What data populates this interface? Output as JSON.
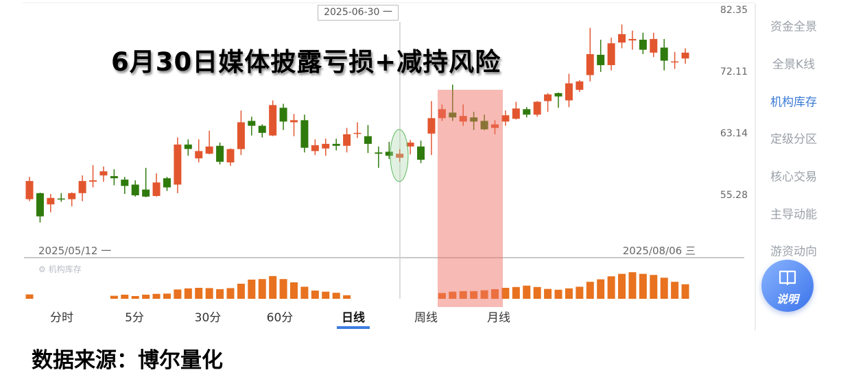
{
  "annotation": {
    "title": "6月30日媒体披露亏损+减持风险",
    "footer": "数据来源：博尔量化"
  },
  "crosshair": {
    "date": "2025-06-30 一"
  },
  "date_range": {
    "start": "2025/05/12 一",
    "end": "2025/08/06 三"
  },
  "indicator": {
    "icon": "gear-icon",
    "label": "机构库存"
  },
  "tabs": [
    {
      "label": "分时"
    },
    {
      "label": "5分"
    },
    {
      "label": "30分"
    },
    {
      "label": "60分"
    },
    {
      "label": "日线",
      "active": true
    },
    {
      "label": "周线"
    },
    {
      "label": "月线"
    }
  ],
  "sidebar": {
    "items": [
      {
        "label": "资金全景"
      },
      {
        "label": "全景K线"
      },
      {
        "label": "机构库存",
        "active": true
      },
      {
        "label": "定级分区"
      },
      {
        "label": "核心交易"
      },
      {
        "label": "主导动能"
      },
      {
        "label": "游资动向"
      }
    ],
    "help_button": {
      "label": "说明",
      "icon": "book-icon"
    }
  },
  "colors": {
    "up": "#e2562f",
    "down": "#2f7a0c",
    "volume": "#e8721f",
    "accent": "#3a7bd5",
    "highlight_zone": "#f4a9a2",
    "highlight_ellipse": "#5cb85c"
  },
  "chart_data": {
    "type": "candlestick",
    "y_scale": "log",
    "y_ticks": [
      82.35,
      72.11,
      63.14,
      55.28
    ],
    "ylim": [
      55.28,
      82.35
    ],
    "grid": false,
    "highlight_candle_index": 35,
    "highlight_zone_indices": [
      39,
      44
    ],
    "ohlc": [
      [
        54.82,
        57.52,
        54.59,
        57.01
      ],
      [
        55.54,
        55.6,
        52.14,
        52.83
      ],
      [
        54.21,
        55.45,
        53.29,
        54.97
      ],
      [
        54.9,
        55.54,
        54.52,
        54.82
      ],
      [
        54.82,
        55.63,
        53.98,
        55.54
      ],
      [
        55.54,
        57.7,
        54.59,
        57.01
      ],
      [
        56.93,
        58.99,
        56.23,
        57.09
      ],
      [
        57.7,
        58.82,
        56.92,
        58.21
      ],
      [
        57.61,
        58.47,
        56.49,
        57.35
      ],
      [
        57.18,
        57.52,
        55.45,
        56.41
      ],
      [
        56.57,
        57.09,
        55.13,
        55.28
      ],
      [
        55.97,
        58.65,
        55.05,
        55.13
      ],
      [
        55.2,
        57.96,
        55.13,
        56.83
      ],
      [
        57.35,
        57.52,
        55.8,
        56.23
      ],
      [
        56.57,
        62.62,
        55.54,
        61.67
      ],
      [
        61.67,
        62.36,
        60.2,
        61.08
      ],
      [
        59.86,
        62.36,
        59.34,
        60.81
      ],
      [
        60.46,
        63.53,
        60.4,
        61.41
      ],
      [
        61.5,
        61.93,
        59.08,
        59.42
      ],
      [
        59.34,
        61.15,
        58.9,
        61.07
      ],
      [
        61.07,
        66.36,
        60.29,
        64.7
      ],
      [
        64.89,
        65.48,
        62.88,
        64.21
      ],
      [
        64.21,
        64.41,
        62.62,
        63.24
      ],
      [
        62.88,
        67.82,
        62.8,
        67.14
      ],
      [
        66.75,
        67.33,
        63.63,
        64.8
      ],
      [
        64.7,
        65.87,
        62.79,
        64.99
      ],
      [
        64.99,
        65.77,
        60.63,
        61.24
      ],
      [
        60.81,
        62.36,
        60.29,
        61.58
      ],
      [
        61.15,
        62.45,
        60.2,
        61.76
      ],
      [
        61.76,
        62.45,
        60.89,
        61.5
      ],
      [
        61.5,
        63.92,
        60.63,
        63.05
      ],
      [
        63.14,
        64.7,
        62.54,
        63.24
      ],
      [
        62.79,
        64.31,
        60.55,
        61.76
      ],
      [
        60.63,
        61.41,
        58.65,
        60.46
      ],
      [
        60.72,
        62.02,
        59.77,
        60.2
      ],
      [
        59.94,
        61.07,
        59.42,
        60.46
      ],
      [
        61.41,
        62.28,
        60.38,
        61.93
      ],
      [
        61.41,
        62.19,
        59.25,
        59.68
      ],
      [
        63.14,
        67.72,
        60.29,
        65.28
      ],
      [
        65.28,
        67.23,
        64.89,
        66.55
      ],
      [
        66.06,
        70.16,
        64.89,
        65.38
      ],
      [
        64.8,
        67.23,
        64.21,
        65.58
      ],
      [
        65.38,
        66.16,
        63.63,
        64.8
      ],
      [
        64.89,
        65.77,
        63.63,
        63.72
      ],
      [
        63.92,
        64.99,
        63.05,
        64.41
      ],
      [
        64.8,
        66.36,
        64.21,
        65.68
      ],
      [
        65.19,
        67.62,
        65.09,
        66.65
      ],
      [
        66.55,
        66.84,
        65.38,
        65.77
      ],
      [
        65.77,
        67.72,
        65.48,
        67.62
      ],
      [
        67.72,
        68.89,
        66.16,
        68.7
      ],
      [
        68.89,
        68.99,
        66.75,
        68.4
      ],
      [
        67.82,
        71.82,
        66.84,
        70.36
      ],
      [
        69.38,
        70.84,
        69.09,
        70.65
      ],
      [
        71.62,
        79.29,
        70.65,
        74.93
      ],
      [
        74.82,
        77.29,
        72.11,
        73.17
      ],
      [
        73.17,
        77.64,
        72.35,
        76.7
      ],
      [
        76.82,
        79.88,
        75.88,
        78.23
      ],
      [
        77.17,
        78.82,
        75.64,
        77.41
      ],
      [
        77.29,
        78.47,
        74.94,
        75.64
      ],
      [
        75.17,
        78.47,
        74.46,
        77.41
      ],
      [
        75.99,
        77.41,
        72.35,
        73.88
      ],
      [
        73.64,
        75.29,
        72.58,
        73.76
      ],
      [
        74.23,
        75.88,
        73.4,
        75.17
      ]
    ],
    "indicator_series": {
      "name": "机构库存",
      "values": [
        16,
        null,
        null,
        null,
        null,
        null,
        null,
        null,
        11,
        15,
        10,
        15,
        18,
        19,
        34,
        38,
        40,
        39,
        35,
        39,
        55,
        70,
        72,
        83,
        72,
        60,
        44,
        30,
        26,
        22,
        13,
        null,
        null,
        null,
        null,
        null,
        null,
        null,
        null,
        21,
        26,
        28,
        28,
        31,
        35,
        40,
        43,
        48,
        43,
        36,
        33,
        38,
        44,
        62,
        71,
        82,
        91,
        97,
        91,
        87,
        77,
        62,
        53
      ]
    }
  }
}
